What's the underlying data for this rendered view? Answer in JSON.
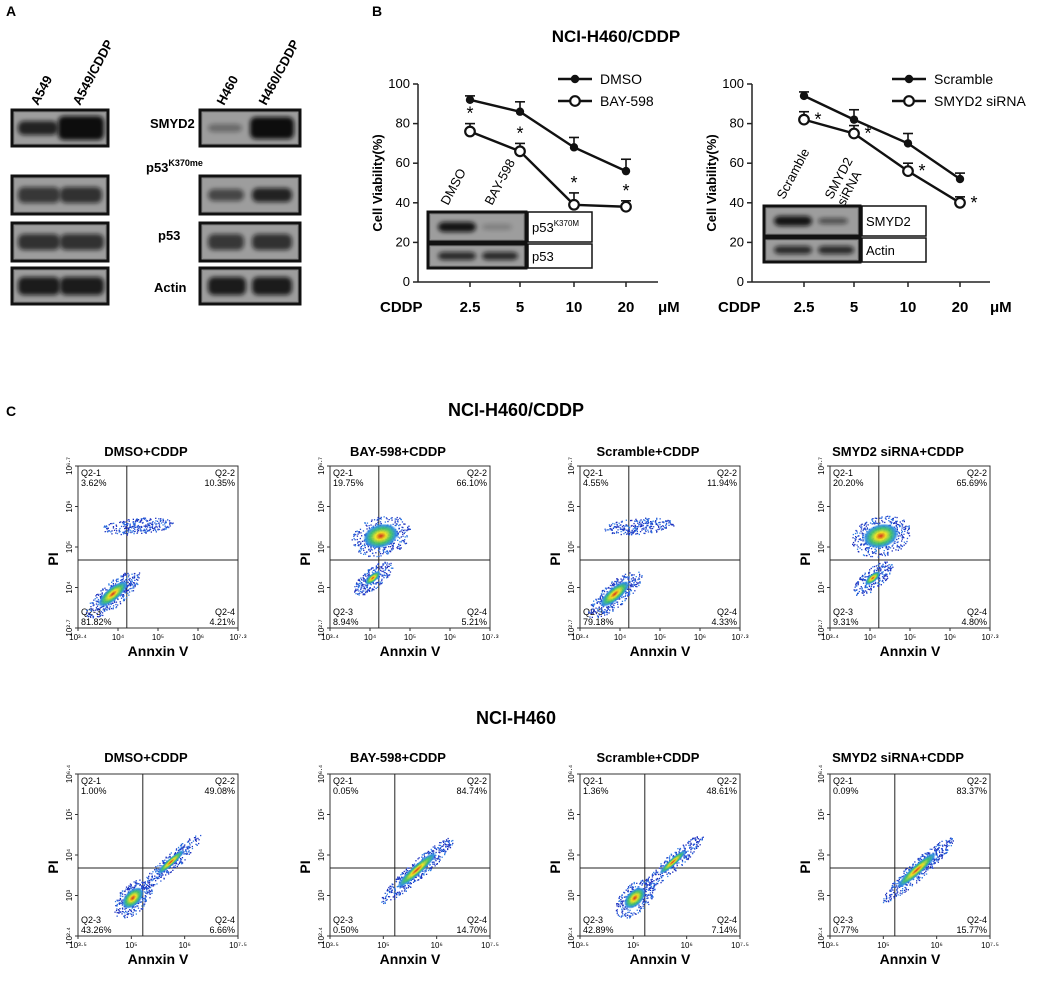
{
  "panels": {
    "a": "A",
    "b": "B",
    "c": "C"
  },
  "panel_a": {
    "left_lanes": [
      "A549",
      "A549/CDDP"
    ],
    "right_lanes": [
      "H460",
      "H460/CDDP"
    ],
    "blots": [
      {
        "label": "SMYD2",
        "sup": ""
      },
      {
        "label": "p53",
        "sup": "K370me"
      },
      {
        "label": "p53",
        "sup": ""
      },
      {
        "label": "Actin",
        "sup": ""
      }
    ]
  },
  "panel_b": {
    "title": "NCI-H460/CDDP",
    "x_prefix": "CDDP",
    "x_unit": "μM",
    "y_label": "Cell Viability(%)",
    "chart_data": [
      {
        "type": "line",
        "categories": [
          "2.5",
          "5",
          "10",
          "20"
        ],
        "ylim": [
          0,
          100
        ],
        "yticks": [
          "0",
          "20",
          "40",
          "60",
          "80",
          "100"
        ],
        "ylabel": "Cell Viability(%)",
        "xlabel": "CDDP μM",
        "series": [
          {
            "name": "DMSO",
            "values": [
              92,
              86,
              68,
              56
            ],
            "err": [
              2,
              5,
              5,
              6
            ],
            "marker": "filled"
          },
          {
            "name": "BAY-598",
            "values": [
              76,
              66,
              39,
              38
            ],
            "err": [
              4,
              4,
              6,
              3
            ],
            "marker": "open"
          }
        ],
        "significance": "*",
        "inset": {
          "lanes": [
            "DMSO",
            "BAY-598"
          ],
          "rows": [
            {
              "label": "p53",
              "sup": "K370M"
            },
            {
              "label": "p53",
              "sup": ""
            }
          ]
        }
      },
      {
        "type": "line",
        "categories": [
          "2.5",
          "5",
          "10",
          "20"
        ],
        "ylim": [
          0,
          100
        ],
        "yticks": [
          "0",
          "20",
          "40",
          "60",
          "80",
          "100"
        ],
        "ylabel": "Cell Viability(%)",
        "xlabel": "CDDP μM",
        "series": [
          {
            "name": "Scramble",
            "values": [
              94,
              82,
              70,
              52
            ],
            "err": [
              2,
              5,
              5,
              3
            ],
            "marker": "filled"
          },
          {
            "name": "SMYD2 siRNA",
            "values": [
              82,
              75,
              56,
              40
            ],
            "err": [
              4,
              4,
              4,
              3
            ],
            "marker": "open"
          }
        ],
        "significance": "*",
        "inset": {
          "lanes": [
            "Scramble",
            "SMYD2 siRNA"
          ],
          "rows": [
            {
              "label": "SMYD2",
              "sup": ""
            },
            {
              "label": "Actin",
              "sup": ""
            }
          ]
        }
      }
    ]
  },
  "panel_c": {
    "x_label": "Annxin V",
    "y_label": "PI",
    "rows": [
      {
        "title": "NCI-H460/CDDP",
        "xticks": [
          "10³·⁴",
          "10⁴",
          "10⁵",
          "10⁶",
          "10⁷·³"
        ],
        "yticks": [
          "10²·⁷",
          "10⁴",
          "10⁵",
          "10⁶",
          "10⁶·⁷"
        ],
        "plots": [
          {
            "title": "DMSO+CDDP",
            "q1": "3.62%",
            "q2": "10.35%",
            "q3": "81.82%",
            "q4": "4.21%"
          },
          {
            "title": "BAY-598+CDDP",
            "q1": "19.75%",
            "q2": "66.10%",
            "q3": "8.94%",
            "q4": "5.21%"
          },
          {
            "title": "Scramble+CDDP",
            "q1": "4.55%",
            "q2": "11.94%",
            "q3": "79.18%",
            "q4": "4.33%"
          },
          {
            "title": "SMYD2 siRNA+CDDP",
            "q1": "20.20%",
            "q2": "65.69%",
            "q3": "9.31%",
            "q4": "4.80%"
          }
        ]
      },
      {
        "title": "NCI-H460",
        "xticks": [
          "10³·⁵",
          "10⁵",
          "10⁶",
          "10⁷·⁵"
        ],
        "yticks": [
          "10²·⁴",
          "10³",
          "10⁴",
          "10⁵",
          "10⁶·⁴"
        ],
        "plots": [
          {
            "title": "DMSO+CDDP",
            "q1": "1.00%",
            "q2": "49.08%",
            "q3": "43.26%",
            "q4": "6.66%"
          },
          {
            "title": "BAY-598+CDDP",
            "q1": "0.05%",
            "q2": "84.74%",
            "q3": "0.50%",
            "q4": "14.70%"
          },
          {
            "title": "Scramble+CDDP",
            "q1": "1.36%",
            "q2": "48.61%",
            "q3": "42.89%",
            "q4": "7.14%"
          },
          {
            "title": "SMYD2 siRNA+CDDP",
            "q1": "0.09%",
            "q2": "83.37%",
            "q3": "0.77%",
            "q4": "15.77%"
          }
        ]
      }
    ],
    "quadrant_names": {
      "q1": "Q2-1",
      "q2": "Q2-2",
      "q3": "Q2-3",
      "q4": "Q2-4"
    }
  }
}
